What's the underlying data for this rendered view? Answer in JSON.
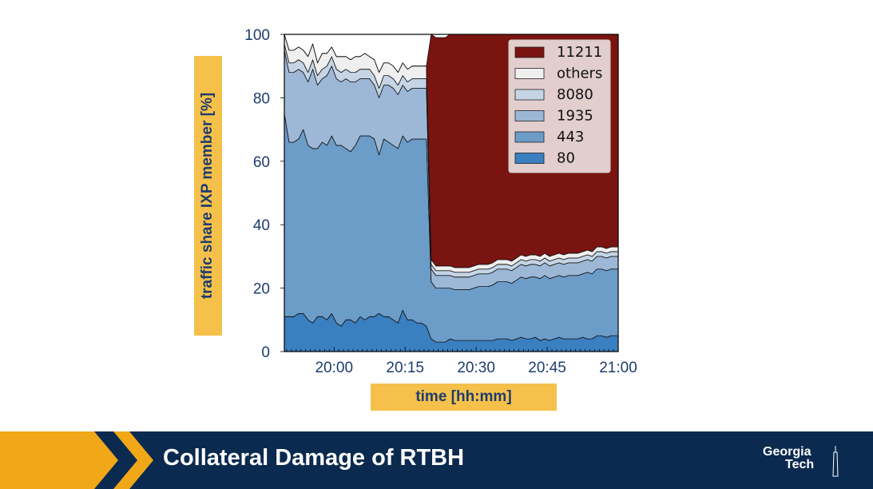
{
  "slide": {
    "title": "Collateral Damage of RTBH",
    "logo": {
      "line1": "Georgia",
      "line2": "Tech"
    },
    "colors": {
      "footer": "#0b2a4f",
      "accent": "#f6c14a",
      "chevron": "#f0a818",
      "text": "#1d3c6e"
    }
  },
  "chart_data": {
    "type": "area",
    "stacked": true,
    "xlabel": "time [hh:mm]",
    "ylabel": "traffic share IXP member [%]",
    "x_ticks": [
      "20:00",
      "20:15",
      "20:30",
      "20:45",
      "21:00"
    ],
    "x_tick_minutes": [
      0,
      15,
      30,
      45,
      60
    ],
    "xlim_minutes": [
      -10.5,
      60
    ],
    "y_ticks": [
      0,
      20,
      40,
      60,
      80,
      100
    ],
    "ylim": [
      0,
      100
    ],
    "legend_position": "top-right",
    "x": [
      -10.5,
      -9.5,
      -8.5,
      -7.5,
      -6.5,
      -5.5,
      -4.5,
      -3.5,
      -2.5,
      -1.5,
      -0.5,
      0.5,
      1.5,
      2.5,
      3.5,
      4.5,
      5.5,
      6.5,
      7.5,
      8.5,
      9.5,
      10.5,
      11.5,
      12.5,
      13.5,
      14.5,
      15.5,
      16.5,
      17.5,
      18.5,
      19.5,
      20.5,
      21.5,
      22.5,
      23.5,
      24.5,
      25.5,
      26.5,
      27.5,
      28.5,
      29.5,
      30.5,
      31.5,
      32.5,
      33.5,
      34.5,
      35.5,
      36.5,
      37.5,
      38.5,
      39.5,
      40.5,
      41.5,
      42.5,
      43.5,
      44.5,
      45.5,
      46.5,
      47.5,
      48.5,
      49.5,
      50.5,
      51.5,
      52.5,
      53.5,
      54.5,
      55.5,
      56.5,
      57.5,
      58.5,
      59.5,
      60
    ],
    "series": [
      {
        "name": "80",
        "color": "#3a7fbf",
        "values": [
          11,
          11,
          11,
          12,
          12,
          10,
          9,
          11,
          11,
          10,
          12,
          9,
          8,
          10,
          10,
          9,
          11,
          10,
          11,
          11,
          12,
          11,
          11,
          10,
          9,
          13,
          10,
          10,
          9,
          9,
          8,
          4,
          3,
          3,
          3,
          4,
          3.5,
          3.5,
          3.5,
          3.5,
          3.5,
          3.5,
          3.5,
          3.5,
          3.5,
          4,
          4,
          4,
          3.5,
          4,
          4.5,
          4,
          4,
          4.5,
          3.5,
          4,
          3.5,
          4,
          4.5,
          4,
          4,
          4,
          4,
          4.5,
          4,
          4,
          5,
          5,
          4.5,
          5,
          5,
          5
        ]
      },
      {
        "name": "443",
        "color": "#6c9cc8",
        "values": [
          64,
          55,
          55,
          55,
          58,
          55,
          55,
          53,
          55,
          55,
          56,
          56,
          57,
          54,
          53,
          56,
          57,
          58,
          57,
          56,
          50,
          56,
          55,
          55,
          55,
          55,
          56,
          57,
          58,
          58,
          59,
          18,
          17,
          17,
          17,
          16,
          16,
          16,
          16,
          16,
          16.5,
          17,
          17,
          17,
          17.5,
          18,
          18,
          18,
          18,
          18.5,
          19,
          19,
          19.5,
          19,
          19.5,
          20,
          19.5,
          19.5,
          19.5,
          19.5,
          20,
          20,
          20,
          20,
          21,
          20.5,
          21,
          21,
          21,
          21,
          21,
          21
        ]
      },
      {
        "name": "1935",
        "color": "#9db8d7",
        "values": [
          20,
          22,
          22,
          22,
          18,
          20,
          25,
          20,
          20,
          22,
          22,
          21,
          20,
          22,
          22,
          20,
          18,
          18,
          18,
          17,
          18,
          17,
          18,
          18,
          17,
          16,
          16,
          16,
          16,
          16,
          16,
          4,
          4,
          4,
          4,
          4,
          4,
          4,
          4,
          4,
          4,
          4,
          4,
          4,
          4,
          4,
          4,
          4,
          4,
          4,
          4,
          4,
          4,
          4,
          4,
          4,
          4,
          4,
          4,
          4,
          4,
          4,
          4,
          4,
          4,
          4,
          4,
          4,
          4,
          4,
          4,
          4
        ]
      },
      {
        "name": "8080",
        "color": "#c5d5e6",
        "values": [
          2,
          3,
          3,
          3,
          3,
          3,
          3,
          3,
          3,
          3,
          3,
          3,
          3,
          3,
          3,
          3,
          3,
          3,
          3,
          3,
          3,
          3,
          3,
          3,
          3,
          3,
          3,
          3,
          3,
          3,
          3,
          1.5,
          1.5,
          1.5,
          1.5,
          1.5,
          1.5,
          1.5,
          1.5,
          1.5,
          1.5,
          1.5,
          1.5,
          1.5,
          1.5,
          1.5,
          1.5,
          1.5,
          1.5,
          1.5,
          1.5,
          1.5,
          1.5,
          1.5,
          1.5,
          1.5,
          1.5,
          1.5,
          1.5,
          1.5,
          1.5,
          1.5,
          1.5,
          1.5,
          1.5,
          1.5,
          1.5,
          1.5,
          1.5,
          1.5,
          1.5,
          1.5
        ]
      },
      {
        "name": "others",
        "color": "#efefef",
        "values": [
          3,
          4,
          4,
          4,
          4,
          5,
          5,
          4,
          5,
          4,
          3,
          4,
          5,
          4,
          4,
          5,
          4,
          5,
          4,
          5,
          5,
          4,
          4,
          4,
          4,
          4,
          4,
          4,
          4,
          4,
          4,
          1.5,
          1.5,
          1.5,
          1.5,
          1.5,
          1.5,
          1.5,
          1.5,
          1.5,
          1.5,
          1.5,
          1.5,
          1.5,
          1.5,
          1.5,
          1.5,
          1.5,
          1.5,
          1.5,
          1.5,
          1.5,
          1.5,
          1.5,
          1.5,
          1.5,
          1.5,
          1.5,
          1.5,
          1.5,
          1.5,
          1.5,
          1.5,
          1.5,
          1.5,
          1.5,
          1.5,
          1.5,
          1.5,
          1.5,
          1.5,
          1.5
        ]
      },
      {
        "name": "11211",
        "color": "#7a1410",
        "values": [
          0,
          0,
          0,
          0,
          0,
          0,
          0,
          0,
          0,
          0,
          0,
          0,
          0,
          0,
          0,
          0,
          0,
          0,
          0,
          0,
          0,
          0,
          0,
          0,
          0,
          0,
          0,
          0,
          0,
          0,
          0,
          71,
          72,
          72,
          72,
          73,
          73.5,
          73.5,
          73.5,
          73.5,
          73,
          72.5,
          72.5,
          72.5,
          72,
          71.5,
          71.5,
          71.5,
          72,
          71.5,
          70.5,
          71,
          71,
          70.5,
          71,
          70.5,
          71,
          70.5,
          70,
          70.5,
          70,
          70,
          70,
          69.5,
          69,
          69.5,
          68.5,
          68.5,
          69,
          68.5,
          68.5,
          68.5
        ]
      }
    ],
    "legend_order": [
      "11211",
      "others",
      "8080",
      "1935",
      "443",
      "80"
    ]
  }
}
